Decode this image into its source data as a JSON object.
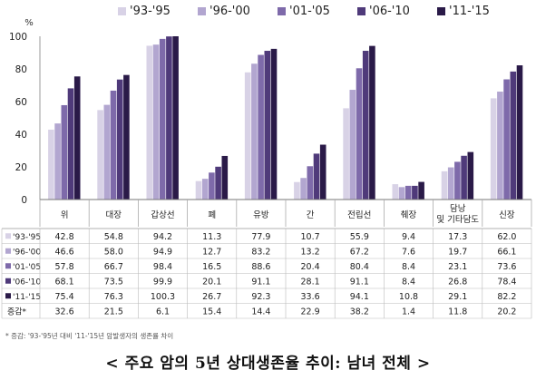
{
  "chart_data": {
    "type": "bar",
    "ylabel": "%",
    "ylim": [
      0,
      100
    ],
    "yticks": [
      0,
      20,
      40,
      60,
      80,
      100
    ],
    "grid": false,
    "legend_position": "top",
    "categories": [
      "위",
      "대장",
      "갑상선",
      "폐",
      "유방",
      "간",
      "전립선",
      "췌장",
      "담낭 및 기타담도",
      "신장"
    ],
    "series": [
      {
        "name": "'93-'95",
        "color": "#d8d2e6",
        "values": [
          42.8,
          54.8,
          94.2,
          11.3,
          77.9,
          10.7,
          55.9,
          9.4,
          17.3,
          62.0
        ]
      },
      {
        "name": "'96-'00",
        "color": "#b2a6d0",
        "values": [
          46.6,
          58.0,
          94.9,
          12.7,
          83.2,
          13.2,
          67.2,
          7.6,
          19.7,
          66.1
        ]
      },
      {
        "name": "'01-'05",
        "color": "#7e6aaa",
        "values": [
          57.8,
          66.7,
          98.4,
          16.5,
          88.6,
          20.4,
          80.4,
          8.4,
          23.1,
          73.6
        ]
      },
      {
        "name": "'06-'10",
        "color": "#4f3a7a",
        "values": [
          68.1,
          73.5,
          99.9,
          20.1,
          91.1,
          28.1,
          91.1,
          8.4,
          26.8,
          78.4
        ]
      },
      {
        "name": "'11-'15",
        "color": "#2a1a48",
        "values": [
          75.4,
          76.3,
          100.3,
          26.7,
          92.3,
          33.6,
          94.1,
          10.8,
          29.1,
          82.2
        ]
      }
    ],
    "change_row": {
      "label": "증감*",
      "values": [
        32.6,
        21.5,
        6.1,
        15.4,
        14.4,
        22.9,
        38.2,
        1.4,
        11.8,
        20.2
      ]
    }
  },
  "footnote": "* 증감: '93-'95년 대비 '11-'15년 암발생자의 생존률 차이",
  "caption": "< 주요 암의 5년 상대생존율 추이: 남녀 전체 >"
}
